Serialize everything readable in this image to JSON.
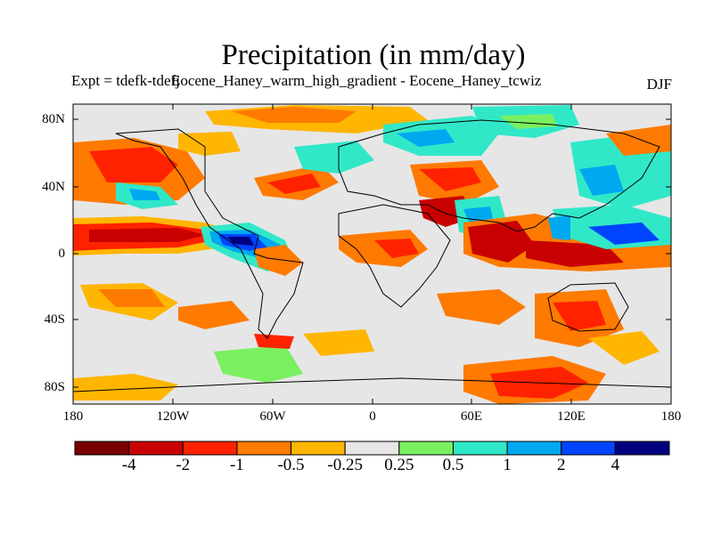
{
  "title": "Precipitation (in mm/day)",
  "subtitle": "Expt = tdefk-tdefj",
  "subtitle_overlap": "Eocene_Haney_warm_high_gradient - Eocene_Haney_tcwiz",
  "season": "DJF",
  "y_ticks": [
    "80N",
    "40N",
    "0",
    "40S",
    "80S"
  ],
  "x_ticks": [
    "180",
    "120W",
    "60W",
    "0",
    "60E",
    "120E",
    "180"
  ],
  "colorbar": {
    "labels": [
      "-4",
      "-2",
      "-1",
      "-0.5",
      "-0.25",
      "0.25",
      "0.5",
      "1",
      "2",
      "4"
    ],
    "colors": [
      "#7a0000",
      "#c80000",
      "#ff2200",
      "#ff7a00",
      "#ffb600",
      "#e6e6e6",
      "#7af060",
      "#30e8c8",
      "#00a8f0",
      "#0044ff",
      "#000080"
    ]
  }
}
